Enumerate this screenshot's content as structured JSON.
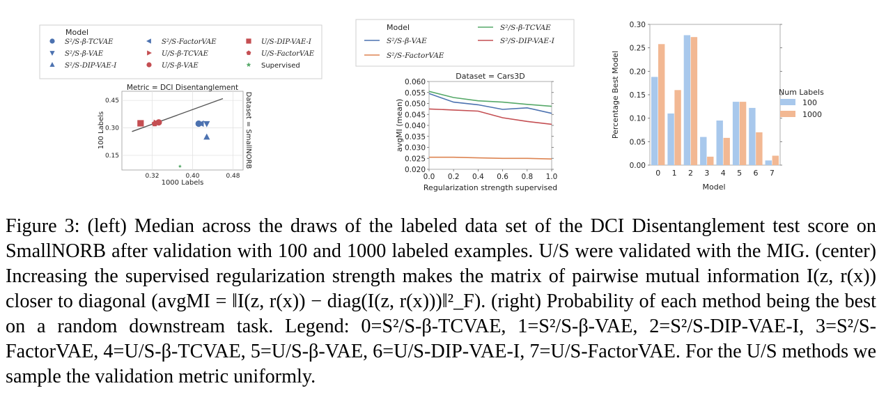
{
  "figure": {
    "caption": "Figure 3: (left) Median across the draws of the labeled data set of the DCI Disentanglement test score on SmallNORB after validation with 100 and 1000 labeled examples. U/S were validated with the MIG. (center) Increasing the supervised regularization strength makes the matrix of pairwise mutual information I(z, r(x)) closer to diagonal (avgMI = ‖I(z, r(x)) − diag(I(z, r(x)))‖²_F). (right) Probability of each method being the best on a random downstream task. Legend: 0=S²/S-β-TCVAE, 1=S²/S-β-VAE, 2=S²/S-DIP-VAE-I, 3=S²/S-FactorVAE, 4=U/S-β-TCVAE, 5=U/S-β-VAE, 6=U/S-DIP-VAE-I, 7=U/S-FactorVAE. For the U/S methods we sample the validation metric uniformly."
  },
  "colors": {
    "blue": "#4c72b0",
    "red": "#c44e52",
    "green": "#55a868",
    "orange": "#dd8452",
    "light_blue": "#a8c8ec",
    "light_orange": "#f2b893"
  },
  "chart_data": [
    {
      "type": "scatter",
      "title": "Metric = DCI Disentanglement",
      "side_label": "Dataset = SmallNORB",
      "xlabel": "1000 Labels",
      "ylabel": "100 Labels",
      "xticks": [
        "0.32",
        "0.40",
        "0.48"
      ],
      "yticks": [
        "0.15",
        "0.30",
        "0.45"
      ],
      "xlim": [
        0.26,
        0.5
      ],
      "ylim": [
        0.07,
        0.5
      ],
      "legend_title": "Model",
      "legend": [
        {
          "label": "S²/S-β-TCVAE",
          "marker": "circle",
          "color": "blue"
        },
        {
          "label": "S²/S-β-VAE",
          "marker": "triangle-down",
          "color": "blue"
        },
        {
          "label": "S²/S-DIP-VAE-I",
          "marker": "triangle-up",
          "color": "blue"
        },
        {
          "label": "S²/S-FactorVAE",
          "marker": "triangle-left",
          "color": "blue"
        },
        {
          "label": "U/S-β-TCVAE",
          "marker": "triangle-right",
          "color": "red"
        },
        {
          "label": "U/S-β-VAE",
          "marker": "circle",
          "color": "red"
        },
        {
          "label": "U/S-DIP-VAE-I",
          "marker": "square",
          "color": "red"
        },
        {
          "label": "U/S-FactorVAE",
          "marker": "pentagon",
          "color": "red"
        },
        {
          "label": "Supervised",
          "marker": "star",
          "color": "green"
        }
      ],
      "points": [
        {
          "model": "S²/S-β-TCVAE",
          "x": 0.412,
          "y": 0.323
        },
        {
          "model": "S²/S-β-VAE",
          "x": 0.428,
          "y": 0.323
        },
        {
          "model": "S²/S-DIP-VAE-I",
          "x": 0.428,
          "y": 0.25
        },
        {
          "model": "S²/S-FactorVAE",
          "x": 0.417,
          "y": 0.323
        },
        {
          "model": "U/S-β-TCVAE",
          "x": 0.328,
          "y": 0.328
        },
        {
          "model": "U/S-β-VAE",
          "x": 0.333,
          "y": 0.33
        },
        {
          "model": "U/S-DIP-VAE-I",
          "x": 0.297,
          "y": 0.325
        },
        {
          "model": "U/S-FactorVAE",
          "x": 0.325,
          "y": 0.323
        },
        {
          "model": "Supervised",
          "x": 0.375,
          "y": 0.09
        }
      ],
      "trend_line": [
        [
          0.28,
          0.28
        ],
        [
          0.46,
          0.46
        ]
      ]
    },
    {
      "type": "line",
      "title": "Dataset = Cars3D",
      "xlabel": "Regularization strength supervised",
      "ylabel": "avgMI (mean)",
      "x": [
        0.0,
        0.2,
        0.4,
        0.6,
        0.8,
        1.0
      ],
      "xticks": [
        "0.0",
        "0.2",
        "0.4",
        "0.6",
        "0.8",
        "1.0"
      ],
      "yticks": [
        "0.020",
        "0.025",
        "0.030",
        "0.035",
        "0.040",
        "0.045",
        "0.050",
        "0.055",
        "0.060"
      ],
      "xlim": [
        0.0,
        1.0
      ],
      "ylim": [
        0.02,
        0.06
      ],
      "legend_title": "Model",
      "series": [
        {
          "name": "S²/S-β-VAE",
          "color": "blue",
          "values": [
            0.0545,
            0.0506,
            0.0494,
            0.0473,
            0.048,
            0.0455
          ]
        },
        {
          "name": "S²/S-β-TCVAE",
          "color": "green",
          "values": [
            0.0555,
            0.0527,
            0.0512,
            0.0506,
            0.0496,
            0.0487
          ]
        },
        {
          "name": "S²/S-FactorVAE",
          "color": "orange",
          "values": [
            0.0255,
            0.0255,
            0.0252,
            0.025,
            0.025,
            0.0247
          ]
        },
        {
          "name": "S²/S-DIP-VAE-I",
          "color": "red",
          "values": [
            0.0475,
            0.047,
            0.0465,
            0.0435,
            0.0418,
            0.0405
          ]
        }
      ]
    },
    {
      "type": "bar",
      "xlabel": "Model",
      "ylabel": "Percentage Best Model",
      "categories": [
        "0",
        "1",
        "2",
        "3",
        "4",
        "5",
        "6",
        "7"
      ],
      "yticks": [
        "0.00",
        "0.05",
        "0.10",
        "0.15",
        "0.20",
        "0.25",
        "0.30"
      ],
      "ylim": [
        0.0,
        0.3
      ],
      "legend_title": "Num Labels",
      "series": [
        {
          "name": "100",
          "color": "light_blue",
          "values": [
            0.188,
            0.11,
            0.277,
            0.06,
            0.095,
            0.135,
            0.122,
            0.01
          ]
        },
        {
          "name": "1000",
          "color": "light_orange",
          "values": [
            0.258,
            0.16,
            0.273,
            0.018,
            0.058,
            0.135,
            0.07,
            0.02
          ]
        }
      ]
    }
  ]
}
